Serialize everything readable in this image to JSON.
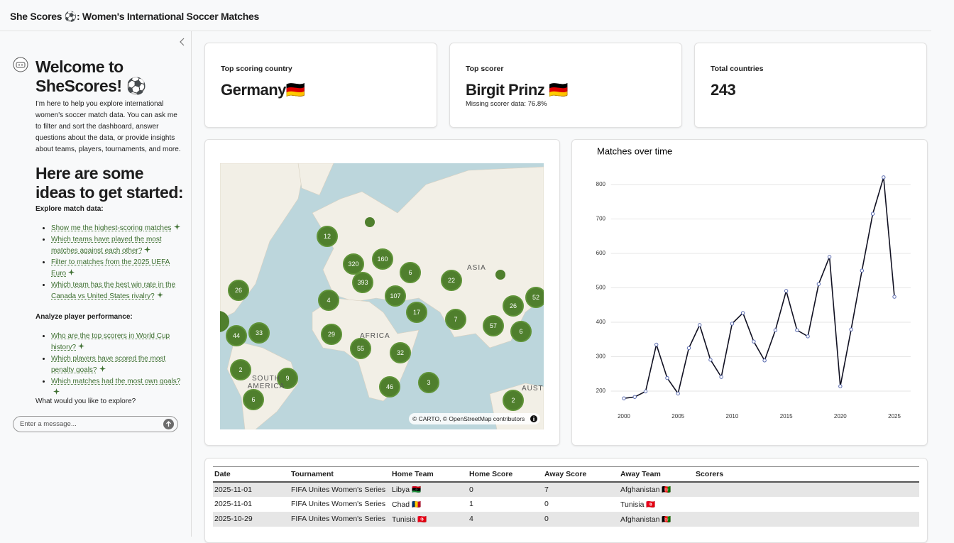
{
  "header": {
    "title": "She Scores ⚽: Women's International Soccer Matches"
  },
  "sidebar": {
    "welcome": "Welcome to SheScores! ⚽",
    "intro": "I'm here to help you explore international women's soccer match data. You can ask me to filter and sort the dashboard, answer questions about the data, or provide insights about teams, players, tournaments, and more.",
    "ideas_heading": "Here are some ideas to get started:",
    "sections": [
      {
        "heading": "Explore match data:",
        "items": [
          "Show me the highest-scoring matches",
          "Which teams have played the most matches against each other?",
          "Filter to matches from the 2025 UEFA Euro",
          "Which team has the best win rate in the Canada vs United States rivalry?"
        ]
      },
      {
        "heading": "Analyze player performance:",
        "items": [
          "Who are the top scorers in World Cup history?",
          "Which players have scored the most penalty goals?",
          "Which matches had the most own goals?"
        ]
      }
    ],
    "prompt": "What would you like to explore?",
    "input_placeholder": "Enter a message..."
  },
  "cards": [
    {
      "label": "Top scoring country",
      "value": "Germany🇩🇪"
    },
    {
      "label": "Top scorer",
      "value": "Birgit Prinz 🇩🇪",
      "note": "Missing scorer data: 76.8%"
    },
    {
      "label": "Total countries",
      "value": 243
    }
  ],
  "map": {
    "clusters": [
      12,
      160,
      320,
      393,
      6,
      22,
      26,
      4,
      107,
      17,
      7,
      26,
      52,
      44,
      33,
      29,
      55,
      57,
      6,
      32,
      2,
      9,
      46,
      3,
      6,
      2
    ],
    "region_labels": [
      "ASIA",
      "AFRICA",
      "SOUTH AMERICA",
      "AUSTI"
    ],
    "attribution": "© CARTO, © OpenStreetMap contributors"
  },
  "chart_data": {
    "type": "line",
    "title": "Matches over time",
    "x": [
      2000,
      2001,
      2002,
      2003,
      2004,
      2005,
      2006,
      2007,
      2008,
      2009,
      2010,
      2011,
      2012,
      2013,
      2014,
      2015,
      2016,
      2017,
      2018,
      2019,
      2020,
      2021,
      2022,
      2023,
      2024,
      2025
    ],
    "values": [
      179,
      183,
      199,
      335,
      238,
      193,
      325,
      392,
      291,
      241,
      396,
      427,
      344,
      289,
      377,
      491,
      377,
      359,
      511,
      590,
      214,
      379,
      550,
      715,
      821,
      474
    ],
    "xlim": [
      1998.8,
      2026.5
    ],
    "xticks": [
      2000,
      2005,
      2010,
      2015,
      2020,
      2025
    ],
    "ylim": [
      170,
      830
    ],
    "yticks": [
      200,
      300,
      400,
      500,
      600,
      700,
      800
    ],
    "grid": true,
    "color": "#111122"
  },
  "table": {
    "columns": [
      "Date",
      "Tournament",
      "Home Team",
      "Home Score",
      "Away Score",
      "Away Team",
      "Scorers"
    ],
    "rows": [
      [
        "2025-11-01",
        "FIFA Unites Women's Series",
        "Libya 🇱🇾",
        0,
        7,
        "Afghanistan 🇦🇫"
      ],
      [
        "2025-11-01",
        "FIFA Unites Women's Series",
        "Chad 🇹🇩",
        1,
        0,
        "Tunisia 🇹🇳"
      ],
      [
        "2025-10-29",
        "FIFA Unites Women's Series",
        "Tunisia 🇹🇳",
        4,
        0,
        "Afghanistan 🇦🇫"
      ]
    ]
  }
}
